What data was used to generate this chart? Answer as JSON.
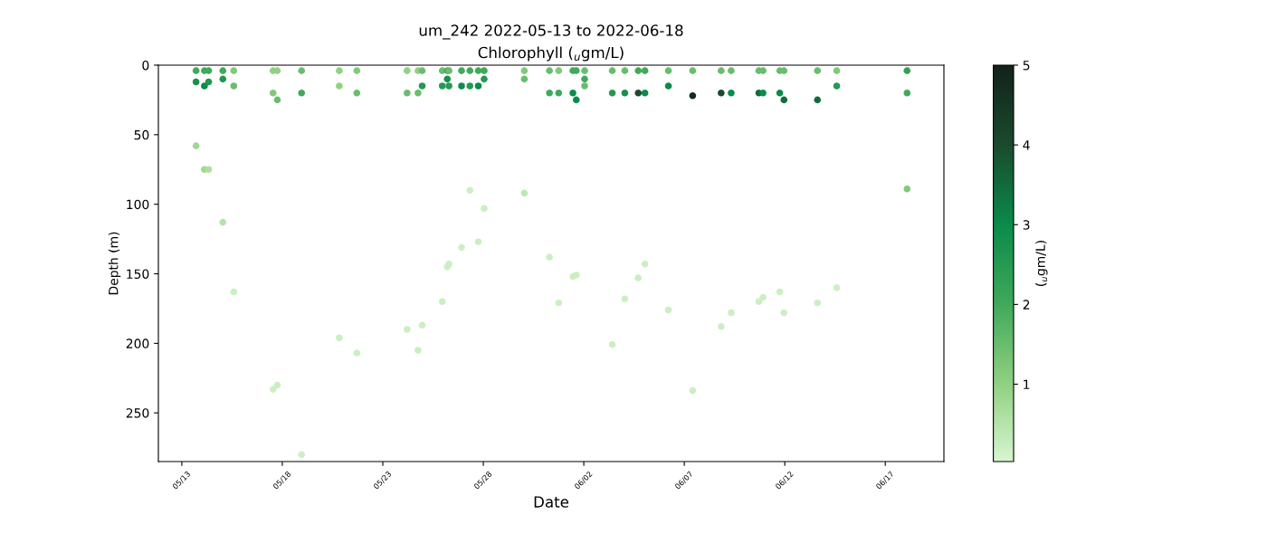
{
  "chart_data": {
    "type": "scatter",
    "title": "um_242 2022-05-13 to 2022-06-18",
    "subtitle": "Chlorophyll ($_{u}$gm/L)",
    "xlabel": "Date",
    "ylabel": "Depth (m)",
    "clabel": "($_{u}$gm/L)",
    "marker": "circle",
    "grid": false,
    "legend": false,
    "xlim": [
      "2022-05-11T20:00",
      "2022-06-19T22:00"
    ],
    "xticks": [
      {
        "value": "2022-05-13",
        "label": "05/13"
      },
      {
        "value": "2022-05-18",
        "label": "05/18"
      },
      {
        "value": "2022-05-23",
        "label": "05/23"
      },
      {
        "value": "2022-05-28",
        "label": "05/28"
      },
      {
        "value": "2022-06-02",
        "label": "06/02"
      },
      {
        "value": "2022-06-07",
        "label": "06/07"
      },
      {
        "value": "2022-06-12",
        "label": "06/12"
      },
      {
        "value": "2022-06-17",
        "label": "06/17"
      }
    ],
    "ylim": [
      285,
      0
    ],
    "yticks": [
      0,
      50,
      100,
      150,
      200,
      250
    ],
    "clim": [
      0.03,
      5
    ],
    "cticks": [
      1,
      2,
      3,
      4,
      5
    ],
    "series": [
      {
        "x": [
          "2022-05-13T17:00",
          "2022-05-13T17:00",
          "2022-05-13T17:00",
          "2022-05-14T03:00",
          "2022-05-14T03:00",
          "2022-05-14T03:00",
          "2022-05-14T08:00",
          "2022-05-14T08:00",
          "2022-05-14T08:00",
          "2022-05-15T01:00",
          "2022-05-15T01:00",
          "2022-05-15T01:00",
          "2022-05-15T14:00",
          "2022-05-15T14:00",
          "2022-05-15T14:00",
          "2022-05-17T13:00",
          "2022-05-17T13:00",
          "2022-05-17T13:00",
          "2022-05-17T18:00",
          "2022-05-17T18:00",
          "2022-05-17T18:00",
          "2022-05-18T23:00",
          "2022-05-18T23:00",
          "2022-05-18T23:00",
          "2022-05-20T20:00",
          "2022-05-20T20:00",
          "2022-05-20T20:00",
          "2022-05-21T17:00",
          "2022-05-21T17:00",
          "2022-05-21T17:00",
          "2022-05-24T05:00",
          "2022-05-24T05:00",
          "2022-05-24T05:00",
          "2022-05-24T18:00",
          "2022-05-24T18:00",
          "2022-05-24T18:00",
          "2022-05-24T23:00",
          "2022-05-24T23:00",
          "2022-05-24T23:00",
          "2022-05-25T23:00",
          "2022-05-25T23:00",
          "2022-05-25T23:00",
          "2022-05-26T05:00",
          "2022-05-26T05:00",
          "2022-05-26T05:00",
          "2022-05-26T07:00",
          "2022-05-26T07:00",
          "2022-05-26T07:00",
          "2022-05-26T22:00",
          "2022-05-26T22:00",
          "2022-05-26T22:00",
          "2022-05-27T08:00",
          "2022-05-27T08:00",
          "2022-05-27T08:00",
          "2022-05-27T18:00",
          "2022-05-27T18:00",
          "2022-05-27T18:00",
          "2022-05-28T01:00",
          "2022-05-28T01:00",
          "2022-05-28T01:00",
          "2022-05-30T01:00",
          "2022-05-30T01:00",
          "2022-05-30T01:00",
          "2022-05-31T07:00",
          "2022-05-31T07:00",
          "2022-05-31T07:00",
          "2022-05-31T18:00",
          "2022-05-31T18:00",
          "2022-05-31T18:00",
          "2022-06-01T11:00",
          "2022-06-01T11:00",
          "2022-06-01T11:00",
          "2022-06-01T15:00",
          "2022-06-01T15:00",
          "2022-06-01T15:00",
          "2022-06-02T01:00",
          "2022-06-02T01:00",
          "2022-06-02T01:00",
          "2022-06-03T10:00",
          "2022-06-03T10:00",
          "2022-06-03T10:00",
          "2022-06-04T01:00",
          "2022-06-04T01:00",
          "2022-06-04T01:00",
          "2022-06-04T17:00",
          "2022-06-04T17:00",
          "2022-06-04T17:00",
          "2022-06-05T01:00",
          "2022-06-05T01:00",
          "2022-06-05T01:00",
          "2022-06-06T05:00",
          "2022-06-06T05:00",
          "2022-06-06T05:00",
          "2022-06-07T10:00",
          "2022-06-07T10:00",
          "2022-06-07T10:00",
          "2022-06-08T20:00",
          "2022-06-08T20:00",
          "2022-06-08T20:00",
          "2022-06-09T08:00",
          "2022-06-09T08:00",
          "2022-06-09T08:00",
          "2022-06-10T17:00",
          "2022-06-10T17:00",
          "2022-06-10T17:00",
          "2022-06-10T22:00",
          "2022-06-10T22:00",
          "2022-06-10T22:00",
          "2022-06-11T18:00",
          "2022-06-11T18:00",
          "2022-06-11T18:00",
          "2022-06-11T23:00",
          "2022-06-11T23:00",
          "2022-06-11T23:00",
          "2022-06-13T15:00",
          "2022-06-13T15:00",
          "2022-06-13T15:00",
          "2022-06-14T14:00",
          "2022-06-14T14:00",
          "2022-06-14T14:00",
          "2022-06-18T02:00",
          "2022-06-18T02:00",
          "2022-06-18T02:00"
        ],
        "values": [
          4,
          12,
          58,
          4,
          15,
          75,
          4,
          12,
          75,
          4,
          10,
          113,
          4,
          15,
          163,
          4,
          20,
          233,
          4,
          25,
          230,
          4,
          20,
          280,
          4,
          15,
          196,
          4,
          20,
          207,
          4,
          20,
          190,
          4,
          20,
          205,
          4,
          15,
          187,
          4,
          15,
          170,
          4,
          10,
          145,
          4,
          15,
          143,
          4,
          15,
          131,
          4,
          15,
          90,
          4,
          15,
          127,
          4,
          10,
          103,
          4,
          10,
          92,
          4,
          20,
          138,
          4,
          20,
          171,
          4,
          20,
          152,
          4,
          25,
          151,
          4,
          10,
          15,
          4,
          20,
          201,
          4,
          20,
          168,
          4,
          20,
          153,
          4,
          20,
          143,
          4,
          15,
          176,
          4,
          22,
          234,
          4,
          20,
          188,
          4,
          20,
          178,
          4,
          20,
          170,
          4,
          20,
          167,
          4,
          20,
          163,
          4,
          25,
          178,
          4,
          25,
          171,
          4,
          15,
          160,
          4,
          20,
          89
        ],
        "cvalues": [
          2,
          2.8,
          0.8,
          2,
          3,
          0.8,
          2,
          2.6,
          0.6,
          2,
          2.6,
          0.5,
          1.2,
          1.5,
          0.2,
          1,
          1.2,
          0.2,
          1,
          1.5,
          0.2,
          1.5,
          2,
          0.2,
          1,
          1,
          0.2,
          1.2,
          1.5,
          0.2,
          1,
          1.5,
          0.2,
          1,
          1.5,
          0.2,
          1.5,
          2.5,
          0.2,
          1.5,
          2.5,
          0.2,
          2,
          2.8,
          0.2,
          1.5,
          2.5,
          0.2,
          2,
          3,
          0.2,
          2,
          2.5,
          0.2,
          2,
          3,
          0.2,
          2,
          2.5,
          0.2,
          1.2,
          1.5,
          0.4,
          1.5,
          2,
          0.2,
          1.2,
          2,
          0.2,
          2,
          3,
          0.2,
          2,
          3,
          0.2,
          1.5,
          2,
          1.5,
          1.5,
          2.5,
          0.2,
          1.5,
          2.8,
          0.2,
          2,
          4,
          0.2,
          2,
          3,
          0.2,
          1.5,
          3,
          0.2,
          1.5,
          4.8,
          0.2,
          1.5,
          4,
          0.2,
          1.5,
          3,
          0.2,
          1.5,
          3.5,
          0.2,
          1.5,
          3,
          0.2,
          1.5,
          3,
          0.2,
          1.5,
          3.5,
          0.2,
          1.5,
          3.5,
          0.2,
          1.2,
          2.5,
          0.2,
          2.3,
          2,
          1.2
        ]
      }
    ]
  }
}
